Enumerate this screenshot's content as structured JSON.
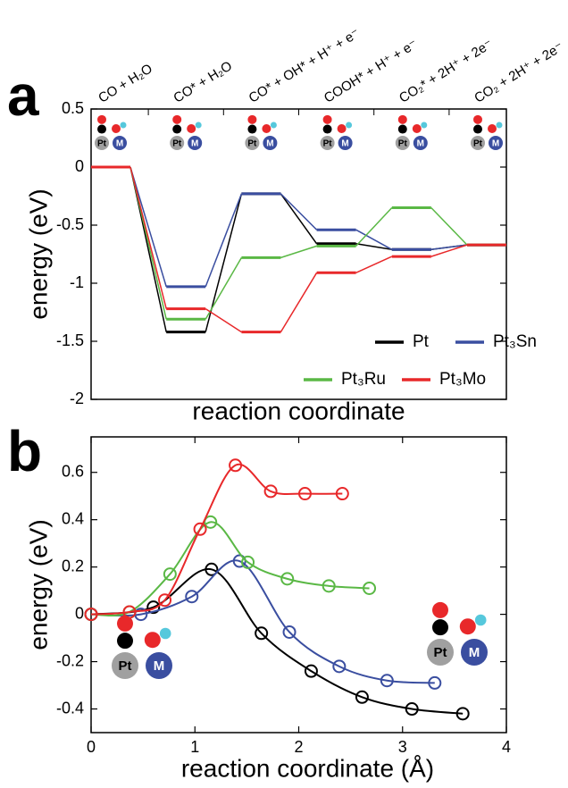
{
  "chart_data": [
    {
      "type": "step",
      "panel_label": "a",
      "x_label": "reaction coordinate",
      "y_label": "energy (eV)",
      "categories": [
        "CO + H₂O",
        "CO* + H₂O",
        "CO* + OH* + H⁺ + e⁻",
        "COOH* + H⁺ + e⁻",
        "CO₂* + 2H⁺ + 2e⁻",
        "CO₂ + 2H⁺ + 2e⁻"
      ],
      "series": [
        {
          "name": "Pt",
          "color": "#000000",
          "values": [
            0,
            -1.42,
            -0.23,
            -0.66,
            -0.71,
            -0.67
          ]
        },
        {
          "name": "Pt₃Sn",
          "color": "#3a4ea0",
          "values": [
            0,
            -1.03,
            -0.23,
            -0.54,
            -0.71,
            -0.67
          ]
        },
        {
          "name": "Pt₃Ru",
          "color": "#5ab845",
          "values": [
            0,
            -1.31,
            -0.78,
            -0.68,
            -0.35,
            -0.67
          ]
        },
        {
          "name": "Pt₃Mo",
          "color": "#e8282a",
          "values": [
            0,
            -1.22,
            -1.42,
            -0.91,
            -0.77,
            -0.67
          ]
        }
      ],
      "ylim": [
        -2,
        0.5
      ],
      "yticks": [
        -2,
        -1.5,
        -1,
        -0.5,
        0,
        0.5
      ],
      "grid": false,
      "legend": "lower right",
      "atom_labels": [
        "Pt",
        "M"
      ]
    },
    {
      "type": "line",
      "panel_label": "b",
      "x_label": "reaction coordinate (Å)",
      "y_label": "energy (eV)",
      "series": [
        {
          "name": "Pt",
          "color": "#000000",
          "x": [
            0,
            0.6,
            1.16,
            1.64,
            2.12,
            2.61,
            3.09,
            3.58
          ],
          "values": [
            0,
            0.03,
            0.19,
            -0.08,
            -0.24,
            -0.35,
            -0.4,
            -0.42
          ]
        },
        {
          "name": "Pt₃Sn",
          "color": "#3a4ea0",
          "x": [
            0,
            0.48,
            0.97,
            1.43,
            1.91,
            2.39,
            2.85,
            3.31
          ],
          "values": [
            0,
            0,
            0.075,
            0.225,
            -0.075,
            -0.22,
            -0.28,
            -0.29
          ]
        },
        {
          "name": "Pt₃Ru",
          "color": "#5ab845",
          "x": [
            0,
            0.37,
            0.76,
            1.15,
            1.51,
            1.89,
            2.29,
            2.68
          ],
          "values": [
            0,
            0.01,
            0.17,
            0.39,
            0.22,
            0.15,
            0.12,
            0.11
          ]
        },
        {
          "name": "Pt₃Mo",
          "color": "#e8282a",
          "x": [
            0,
            0.37,
            0.71,
            1.05,
            1.39,
            1.73,
            2.06,
            2.42
          ],
          "values": [
            0,
            0.01,
            0.06,
            0.36,
            0.63,
            0.52,
            0.51,
            0.51
          ]
        }
      ],
      "xlim": [
        0,
        4
      ],
      "xticks": [
        0,
        1,
        2,
        3,
        4
      ],
      "ylim": [
        -0.5,
        0.75
      ],
      "yticks": [
        -0.4,
        -0.2,
        0,
        0.2,
        0.4,
        0.6
      ],
      "grid": false,
      "atom_labels": [
        "Pt",
        "M"
      ]
    }
  ]
}
